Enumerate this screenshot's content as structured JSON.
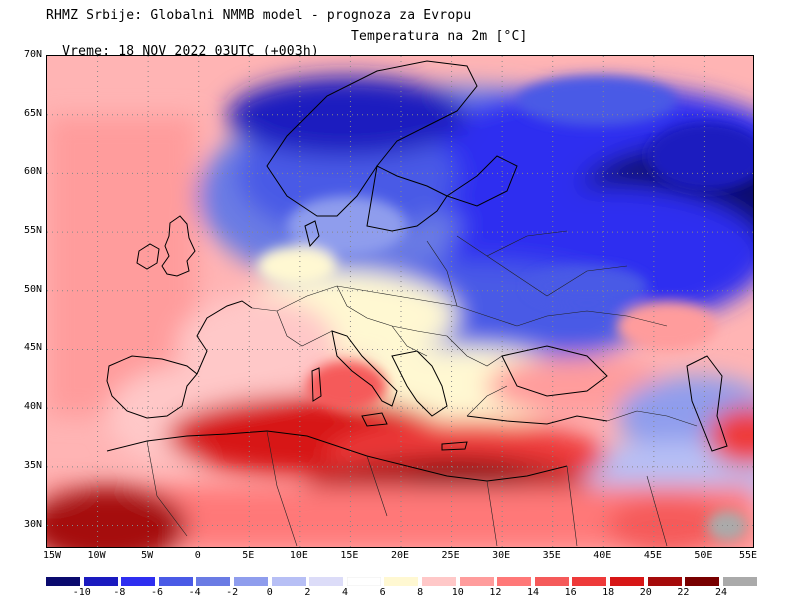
{
  "header": {
    "title_line1": "RHMZ Srbije: Globalni NMMB model - prognoza za Evropu",
    "title_line2_time": "Vreme: 18 NOV 2022 03UTC (+003h)",
    "title_line2_param": "Temperatura na 2m [°C]"
  },
  "map": {
    "latitude_labels": [
      "70N",
      "65N",
      "60N",
      "55N",
      "50N",
      "45N",
      "40N",
      "35N",
      "30N"
    ],
    "longitude_labels": [
      "15W",
      "10W",
      "5W",
      "0",
      "5E",
      "10E",
      "15E",
      "20E",
      "25E",
      "30E",
      "35E",
      "40E",
      "45E",
      "50E",
      "55E"
    ],
    "lat_range": [
      28,
      70
    ],
    "lon_range": [
      -15,
      55
    ],
    "grid": "dotted"
  },
  "legend": {
    "colors": [
      "#0a0a6e",
      "#1a1abf",
      "#2e2ef0",
      "#4a5ae6",
      "#6a7be4",
      "#8f9ded",
      "#b7bff5",
      "#dcdcf8",
      "#ffffff",
      "#fff8d2",
      "#ffc8c8",
      "#ff9c9c",
      "#ff7878",
      "#f55a5a",
      "#ee3a3a",
      "#d71616",
      "#a50a0a",
      "#780000",
      "#aaaaaa"
    ],
    "tick_labels": [
      "-10",
      "-8",
      "-6",
      "-4",
      "-2",
      "0",
      "2",
      "4",
      "6",
      "8",
      "10",
      "12",
      "14",
      "16",
      "18",
      "20",
      "22",
      "24"
    ]
  }
}
